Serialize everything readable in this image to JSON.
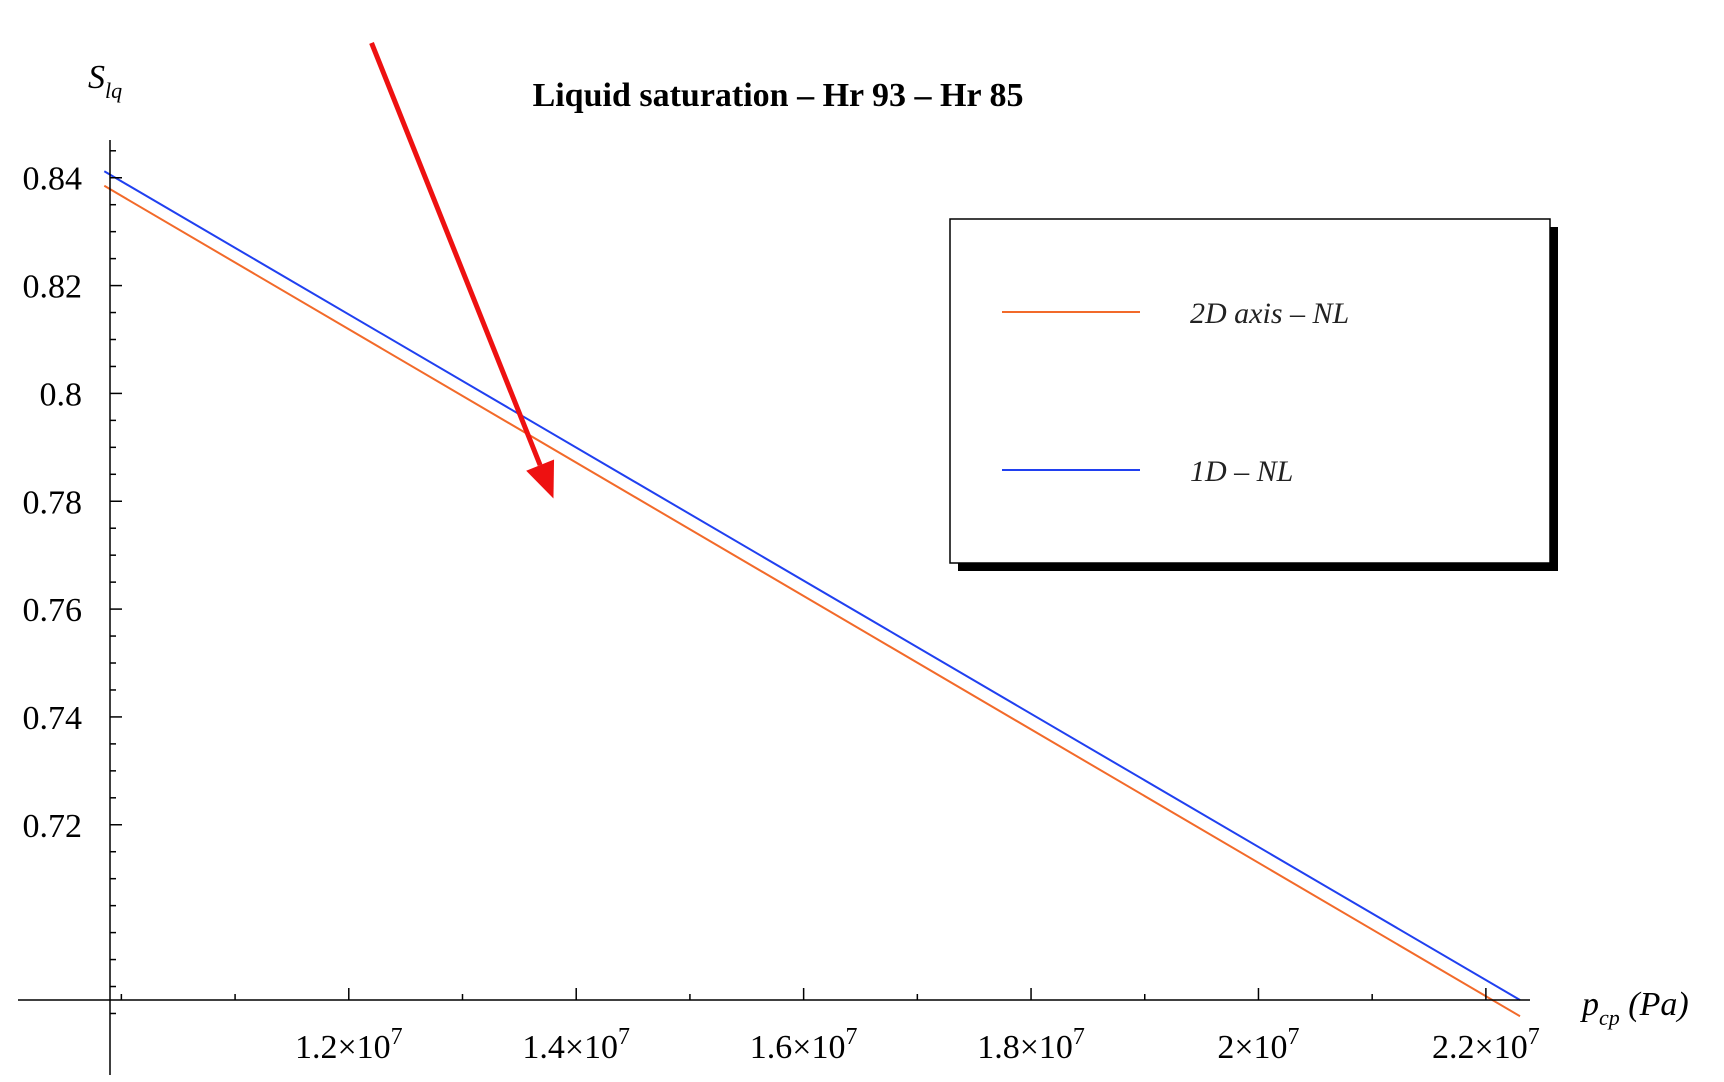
{
  "chart_data": {
    "type": "line",
    "title": "Liquid saturation – Hr 93 – Hr 85",
    "ylabel": {
      "main": "S",
      "sub": "lq"
    },
    "xlabel": {
      "main": "p",
      "sub": "cp",
      "unit": " (Pa)"
    },
    "xlim": [
      9900000,
      22300000
    ],
    "ylim": [
      0.6875,
      0.847
    ],
    "x_ticks": [
      {
        "value": 12000000,
        "mant": "1.2",
        "exp": "7"
      },
      {
        "value": 14000000,
        "mant": "1.4",
        "exp": "7"
      },
      {
        "value": 16000000,
        "mant": "1.6",
        "exp": "7"
      },
      {
        "value": 18000000,
        "mant": "1.8",
        "exp": "7"
      },
      {
        "value": 20000000,
        "mant": "2",
        "exp": "7"
      },
      {
        "value": 22000000,
        "mant": "2.2",
        "exp": "7"
      }
    ],
    "y_ticks": [
      {
        "value": 0.84,
        "label": "0.84"
      },
      {
        "value": 0.82,
        "label": "0.82"
      },
      {
        "value": 0.8,
        "label": "0.8"
      },
      {
        "value": 0.78,
        "label": "0.78"
      },
      {
        "value": 0.76,
        "label": "0.76"
      },
      {
        "value": 0.74,
        "label": "0.74"
      },
      {
        "value": 0.72,
        "label": "0.72"
      }
    ],
    "series": [
      {
        "name": "2D axis – NL",
        "color": "#f26a2a",
        "x": [
          9850000,
          22300000
        ],
        "y": [
          0.8385,
          0.6845
        ]
      },
      {
        "name": "1D – NL",
        "color": "#2040f0",
        "x": [
          9850000,
          22300000
        ],
        "y": [
          0.8412,
          0.6875
        ]
      }
    ],
    "legend_position": "top-right",
    "annotation": {
      "type": "arrow",
      "color": "#ee1111",
      "from": [
        12200000,
        0.865
      ],
      "to": [
        13800000,
        0.7805
      ]
    }
  }
}
